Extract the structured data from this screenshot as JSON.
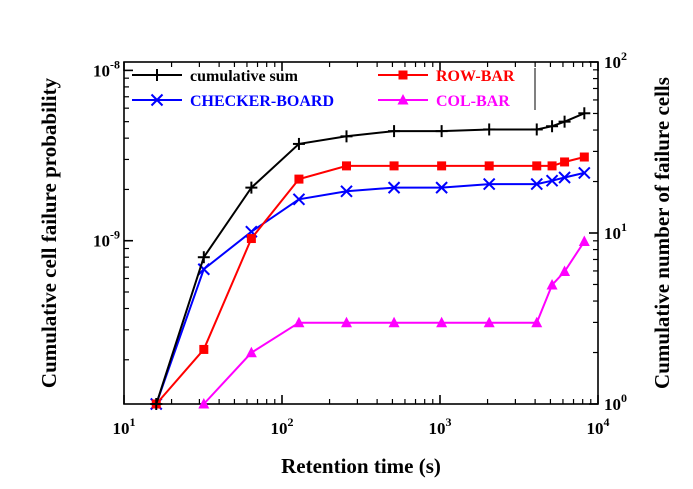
{
  "chart_data": {
    "type": "line",
    "title": "",
    "xlabel": "Retention time (s)",
    "ylabel_left": "Cumulative cell failure probability",
    "ylabel_right": "Cumulative number of failure cells",
    "xscale": "log",
    "yscale": "log",
    "xlim": [
      10,
      10000
    ],
    "ylim_left": [
      1.1e-10,
      1.12e-08
    ],
    "ylim_right": [
      1,
      100
    ],
    "x_ticks": [
      {
        "value": 10,
        "base": "10",
        "exp": "1"
      },
      {
        "value": 100,
        "base": "10",
        "exp": "2"
      },
      {
        "value": 1000,
        "base": "10",
        "exp": "3"
      },
      {
        "value": 10000,
        "base": "10",
        "exp": "4"
      }
    ],
    "y_left_ticks": [
      {
        "value": 1e-09,
        "base": "10",
        "exp": "-9"
      },
      {
        "value": 1e-08,
        "base": "10",
        "exp": "-8"
      }
    ],
    "y_right_ticks": [
      {
        "value": 1,
        "base": "10",
        "exp": "0"
      },
      {
        "value": 10,
        "base": "10",
        "exp": "1"
      },
      {
        "value": 100,
        "base": "10",
        "exp": "2"
      }
    ],
    "grid": false,
    "legend_position": "top",
    "series": [
      {
        "name": "cumulative sum",
        "color": "#000000",
        "marker": "plus",
        "x": [
          16,
          32,
          64,
          128,
          256,
          512,
          1024,
          2048,
          4096,
          5120,
          6144,
          8192
        ],
        "y": [
          1.1e-10,
          8e-10,
          2.05e-09,
          3.7e-09,
          4.1e-09,
          4.4e-09,
          4.4e-09,
          4.5e-09,
          4.5e-09,
          4.7e-09,
          5e-09,
          5.6e-09
        ]
      },
      {
        "name": "ROW-BAR",
        "color": "#ff0000",
        "marker": "square",
        "x": [
          16,
          32,
          64,
          128,
          256,
          512,
          1024,
          2048,
          4096,
          5120,
          6144,
          8192
        ],
        "y": [
          1.1e-10,
          2.3e-10,
          1.03e-09,
          2.3e-09,
          2.75e-09,
          2.75e-09,
          2.75e-09,
          2.75e-09,
          2.75e-09,
          2.75e-09,
          2.9e-09,
          3.1e-09
        ]
      },
      {
        "name": "CHECKER-BOARD",
        "color": "#0000ff",
        "marker": "x",
        "x": [
          16,
          32,
          64,
          128,
          256,
          512,
          1024,
          2048,
          4096,
          5120,
          6144,
          8192
        ],
        "y": [
          1.1e-10,
          6.8e-10,
          1.13e-09,
          1.75e-09,
          1.95e-09,
          2.05e-09,
          2.05e-09,
          2.15e-09,
          2.15e-09,
          2.25e-09,
          2.35e-09,
          2.5e-09
        ]
      },
      {
        "name": "COL-BAR",
        "color": "#ff00ff",
        "marker": "triangle",
        "x": [
          32,
          64,
          128,
          256,
          512,
          1024,
          2048,
          4096,
          5120,
          6144,
          8192
        ],
        "y": [
          1.1e-10,
          2.2e-10,
          3.3e-10,
          3.3e-10,
          3.3e-10,
          3.3e-10,
          3.3e-10,
          3.3e-10,
          5.5e-10,
          6.6e-10,
          9.9e-10
        ]
      }
    ]
  }
}
